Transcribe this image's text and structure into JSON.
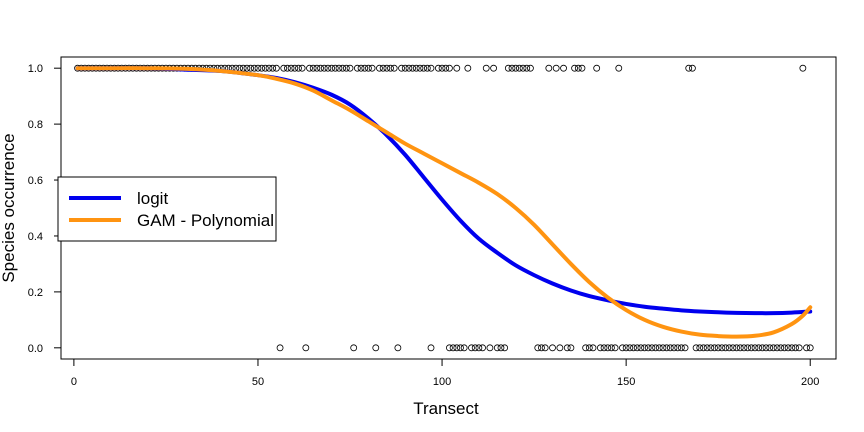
{
  "chart_data": {
    "type": "scatter",
    "title": "",
    "xlabel": "Transect",
    "ylabel": "Species occurrence",
    "xlim": [
      -3.5,
      207
    ],
    "ylim": [
      -0.04,
      1.04
    ],
    "xticks": [
      0,
      50,
      100,
      150,
      200
    ],
    "yticks": [
      0.0,
      0.2,
      0.4,
      0.6,
      0.8,
      1.0
    ],
    "ytick_labels": [
      "0.0",
      "0.2",
      "0.4",
      "0.6",
      "0.8",
      "1.0"
    ],
    "grid": false,
    "legend_position": "middle-left",
    "points_presence_x": [
      1,
      2,
      3,
      4,
      5,
      6,
      7,
      8,
      9,
      10,
      11,
      12,
      13,
      14,
      15,
      16,
      17,
      18,
      19,
      20,
      21,
      22,
      23,
      24,
      25,
      26,
      27,
      28,
      29,
      30,
      31,
      32,
      33,
      34,
      35,
      36,
      37,
      38,
      39,
      40,
      41,
      42,
      43,
      44,
      45,
      46,
      47,
      48,
      49,
      50,
      51,
      52,
      53,
      54,
      55,
      57,
      58,
      59,
      60,
      61,
      62,
      64,
      65,
      66,
      67,
      68,
      69,
      70,
      71,
      72,
      73,
      74,
      75,
      77,
      78,
      79,
      80,
      81,
      83,
      84,
      85,
      86,
      87,
      89,
      90,
      91,
      92,
      93,
      94,
      95,
      96,
      97,
      99,
      100,
      101,
      102,
      104,
      107,
      112,
      114,
      118,
      119,
      120,
      121,
      122,
      123,
      124,
      129,
      131,
      133,
      136,
      137,
      138,
      142,
      148,
      167,
      168,
      198
    ],
    "points_absence_x": [
      56,
      63,
      76,
      82,
      88,
      97,
      102,
      103,
      104,
      105,
      106,
      108,
      109,
      110,
      111,
      113,
      115,
      116,
      117,
      126,
      127,
      128,
      130,
      132,
      134,
      135,
      139,
      140,
      141,
      143,
      144,
      145,
      146,
      147,
      149,
      150,
      151,
      152,
      153,
      154,
      155,
      156,
      157,
      158,
      159,
      160,
      161,
      162,
      163,
      164,
      165,
      166,
      169,
      170,
      171,
      172,
      173,
      174,
      175,
      176,
      177,
      178,
      179,
      180,
      181,
      182,
      183,
      184,
      185,
      186,
      187,
      188,
      189,
      190,
      191,
      192,
      193,
      194,
      195,
      196,
      197,
      199,
      200
    ],
    "series": [
      {
        "name": "logit",
        "color": "#0000ee",
        "x": [
          1,
          10,
          20,
          30,
          40,
          50,
          55,
          60,
          65,
          70,
          75,
          80,
          85,
          90,
          95,
          100,
          105,
          110,
          115,
          120,
          125,
          130,
          135,
          140,
          145,
          150,
          155,
          160,
          165,
          170,
          175,
          180,
          185,
          190,
          195,
          200
        ],
        "y": [
          1.0,
          1.0,
          1.0,
          0.995,
          0.99,
          0.975,
          0.965,
          0.95,
          0.93,
          0.905,
          0.87,
          0.82,
          0.76,
          0.69,
          0.61,
          0.53,
          0.455,
          0.39,
          0.34,
          0.295,
          0.26,
          0.23,
          0.205,
          0.185,
          0.17,
          0.157,
          0.147,
          0.14,
          0.134,
          0.13,
          0.127,
          0.125,
          0.124,
          0.124,
          0.126,
          0.13
        ]
      },
      {
        "name": "GAM - Polynomial",
        "color": "#ff9411",
        "x": [
          1,
          10,
          20,
          30,
          40,
          50,
          55,
          60,
          65,
          70,
          75,
          80,
          85,
          90,
          95,
          100,
          105,
          110,
          115,
          120,
          125,
          130,
          135,
          140,
          145,
          150,
          155,
          160,
          165,
          170,
          175,
          180,
          185,
          190,
          195,
          198,
          200
        ],
        "y": [
          1.0,
          1.0,
          1.0,
          0.998,
          0.99,
          0.975,
          0.962,
          0.945,
          0.92,
          0.885,
          0.85,
          0.81,
          0.77,
          0.73,
          0.695,
          0.66,
          0.625,
          0.59,
          0.55,
          0.5,
          0.44,
          0.37,
          0.3,
          0.235,
          0.18,
          0.135,
          0.1,
          0.075,
          0.058,
          0.047,
          0.042,
          0.04,
          0.043,
          0.055,
          0.085,
          0.115,
          0.145
        ]
      }
    ]
  }
}
